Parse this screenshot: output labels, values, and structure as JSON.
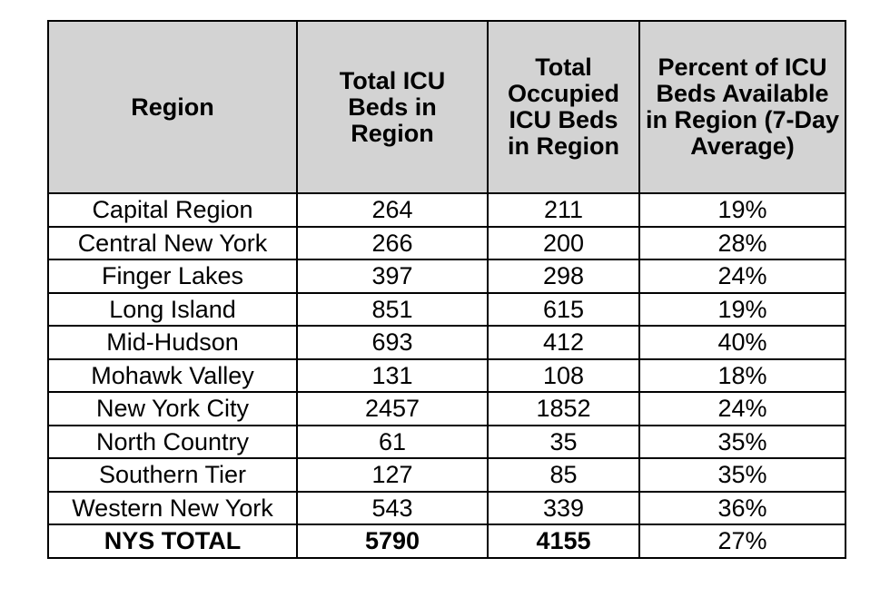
{
  "table": {
    "headers": [
      "Region",
      "Total ICU Beds in Region",
      "Total Occupied ICU Beds in Region",
      "Percent of ICU Beds Available in Region (7-Day Average)"
    ],
    "rows": [
      [
        "Capital Region",
        "264",
        "211",
        "19%"
      ],
      [
        "Central New York",
        "266",
        "200",
        "28%"
      ],
      [
        "Finger Lakes",
        "397",
        "298",
        "24%"
      ],
      [
        "Long Island",
        "851",
        "615",
        "19%"
      ],
      [
        "Mid-Hudson",
        "693",
        "412",
        "40%"
      ],
      [
        "Mohawk Valley",
        "131",
        "108",
        "18%"
      ],
      [
        "New York City",
        "2457",
        "1852",
        "24%"
      ],
      [
        "North Country",
        "61",
        "35",
        "35%"
      ],
      [
        "Southern Tier",
        "127",
        "85",
        "35%"
      ],
      [
        "Western New York",
        "543",
        "339",
        "36%"
      ]
    ],
    "total": [
      "NYS TOTAL",
      "5790",
      "4155",
      "27%"
    ]
  }
}
